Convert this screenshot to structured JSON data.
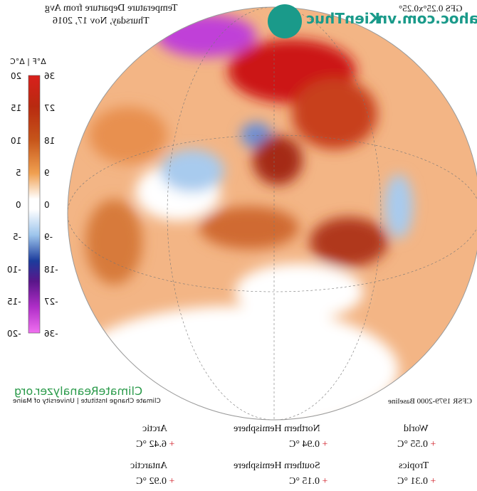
{
  "header": {
    "title": "Temperature Departure from Avg",
    "date": "Thursday, Nov 17, 2016",
    "model": "GFS 0.25°x0.25°"
  },
  "watermark": {
    "brand": "KienThuc",
    "site": "khoahoc.com.vn"
  },
  "legend": {
    "header": "Δ°F | Δ°C",
    "celsius": [
      20,
      15,
      10,
      5,
      0,
      -5,
      -10,
      -15,
      -20
    ],
    "fahrenheit": [
      36,
      27,
      18,
      9,
      0,
      -9,
      -18,
      -27,
      -36
    ]
  },
  "footer": {
    "site": "ClimateReanalyzer.org",
    "institute": "Climate Change Institute | University of Maine",
    "baseline": "CFSR 1979-2000 Baseline"
  },
  "regions": [
    {
      "name": "Arctic",
      "sign": "+",
      "value": "6.42 °C"
    },
    {
      "name": "Northern Hemisphere",
      "sign": "+",
      "value": "0.94 °C"
    },
    {
      "name": "World",
      "sign": "+",
      "value": "0.55 °C"
    },
    {
      "name": "Antarctic",
      "sign": "+",
      "value": "0.92 °C"
    },
    {
      "name": "Southern Hemisphere",
      "sign": "+",
      "value": "0.15 °C"
    },
    {
      "name": "Tropics",
      "sign": "+",
      "value": "0.31 °C"
    }
  ]
}
